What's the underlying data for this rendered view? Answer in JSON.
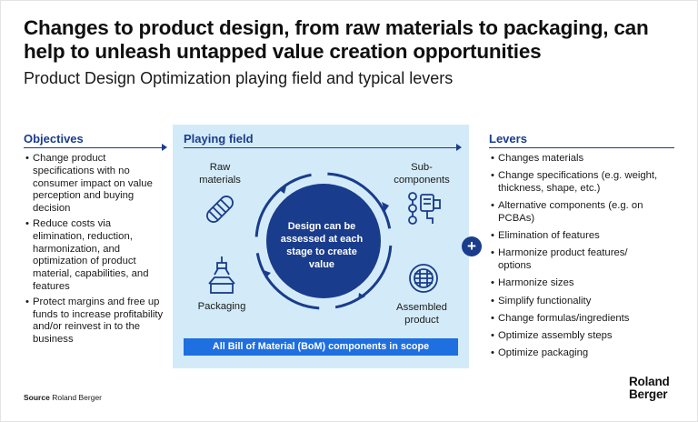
{
  "header": {
    "title": "Changes to product design, from raw materials to packaging, can help to unleash untapped value creation opportunities",
    "subtitle": "Product Design Optimization playing field and typical levers"
  },
  "objectives": {
    "heading": "Objectives",
    "items": [
      "Change product specifications with no consumer impact on value perception and buying decision",
      "Reduce costs via elimination, reduction, harmonization, and optimization of product material, capabilities, and features",
      "Protect margins and free up funds to increase profitability and/or reinvest in to the business"
    ]
  },
  "playing_field": {
    "heading": "Playing field",
    "raw_materials": "Raw materials",
    "sub_components": "Sub-components",
    "assembled_product": "Assembled product",
    "packaging": "Packaging",
    "center": "Design can be assessed at each stage to create value",
    "scope": "All Bill of Material (BoM) components in scope",
    "colors": {
      "field_bg": "#d3ebf8",
      "circle": "#1a3c8c",
      "scope_bar": "#1e6fe0"
    }
  },
  "levers": {
    "heading": "Levers",
    "plus_symbol": "+",
    "items": [
      "Changes materials",
      "Change specifications (e.g. weight, thickness, shape, etc.)",
      "Alternative components (e.g. on PCBAs)",
      "Elimination of features",
      "Harmonize product features/ options",
      "Harmonize sizes",
      "Simplify functionality",
      "Change formulas/ingredients",
      "Optimize assembly steps",
      "Optimize packaging"
    ]
  },
  "footer": {
    "source_label": "Source",
    "source_value": "Roland Berger",
    "logo_line1": "Roland",
    "logo_line2": "Berger"
  }
}
